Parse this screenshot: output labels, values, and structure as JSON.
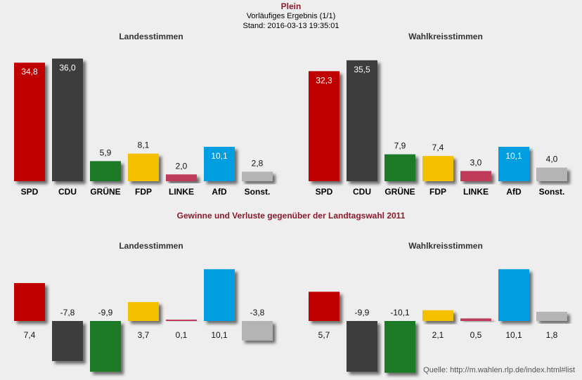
{
  "header": {
    "title": "Plein",
    "subtitle": "Vorläufiges Ergebnis (1/1)",
    "stand": "Stand: 2016-03-13 19:35:01"
  },
  "changes_title": "Gewinne und Verluste gegenüber der Landtagswahl 2011",
  "source": "Quelle: http://m.wahlen.rlp.de/index.html#list",
  "parties": [
    {
      "name": "SPD",
      "color": "#c00000"
    },
    {
      "name": "CDU",
      "color": "#3c3c3c"
    },
    {
      "name": "GRÜNE",
      "color": "#1e7a28"
    },
    {
      "name": "FDP",
      "color": "#f5c000"
    },
    {
      "name": "LINKE",
      "color": "#be3a5a"
    },
    {
      "name": "AfD",
      "color": "#009ee0"
    },
    {
      "name": "Sonst.",
      "color": "#b4b4b4"
    }
  ],
  "chart_data": [
    {
      "type": "bar",
      "title": "Landesstimmen",
      "categories": [
        "SPD",
        "CDU",
        "GRÜNE",
        "FDP",
        "LINKE",
        "AfD",
        "Sonst."
      ],
      "values": [
        34.8,
        36.0,
        5.9,
        8.1,
        2.0,
        10.1,
        2.8
      ],
      "labels": [
        "34,8",
        "36,0",
        "5,9",
        "8,1",
        "2,0",
        "10,1",
        "2,8"
      ]
    },
    {
      "type": "bar",
      "title": "Wahlkreisstimmen",
      "categories": [
        "SPD",
        "CDU",
        "GRÜNE",
        "FDP",
        "LINKE",
        "AfD",
        "Sonst."
      ],
      "values": [
        32.3,
        35.5,
        7.9,
        7.4,
        3.0,
        10.1,
        4.0
      ],
      "labels": [
        "32,3",
        "35,5",
        "7,9",
        "7,4",
        "3,0",
        "10,1",
        "4,0"
      ]
    },
    {
      "type": "bar",
      "title": "Landesstimmen",
      "categories": [
        "SPD",
        "CDU",
        "GRÜNE",
        "FDP",
        "LINKE",
        "AfD",
        "Sonst."
      ],
      "values": [
        7.4,
        -7.8,
        -9.9,
        3.7,
        0.1,
        10.1,
        -3.8
      ],
      "labels": [
        "7,4",
        "-7,8",
        "-9,9",
        "3,7",
        "0,1",
        "10,1",
        "-3,8"
      ]
    },
    {
      "type": "bar",
      "title": "Wahlkreisstimmen",
      "categories": [
        "SPD",
        "CDU",
        "GRÜNE",
        "FDP",
        "LINKE",
        "AfD",
        "Sonst."
      ],
      "values": [
        5.7,
        -9.9,
        -10.1,
        2.1,
        0.5,
        10.1,
        1.8
      ],
      "labels": [
        "5,7",
        "-9,9",
        "-10,1",
        "2,1",
        "0,5",
        "10,1",
        "1,8"
      ]
    }
  ]
}
